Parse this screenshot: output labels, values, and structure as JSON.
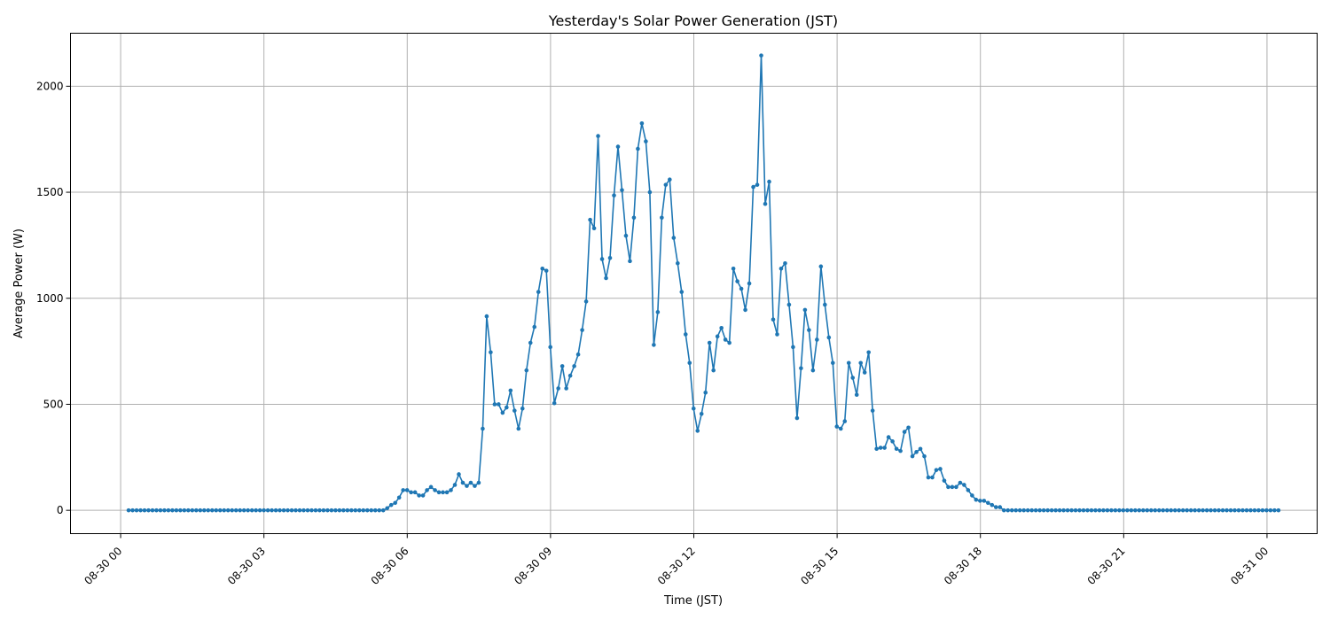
{
  "chart_data": {
    "type": "line",
    "title": "Yesterday's Solar Power Generation (JST)",
    "xlabel": "Time (JST)",
    "ylabel": "Average Power (W)",
    "x_tick_labels": [
      "08-30 00",
      "08-30 03",
      "08-30 06",
      "08-30 09",
      "08-30 12",
      "08-30 15",
      "08-30 18",
      "08-30 21",
      "08-31 00"
    ],
    "x_tick_hours": [
      0,
      3,
      6,
      9,
      12,
      15,
      18,
      21,
      24
    ],
    "y_ticks": [
      0,
      500,
      1000,
      1500,
      2000
    ],
    "xlim_hours": [
      -1.05,
      25.05
    ],
    "ylim": [
      -110,
      2250
    ],
    "grid": true,
    "line_color": "#1f77b4",
    "series": [
      {
        "x_start_hour": 0.1667,
        "x_step_hour": 0.0833,
        "values": [
          0,
          0,
          0,
          0,
          0,
          0,
          0,
          0,
          0,
          0,
          0,
          0,
          0,
          0,
          0,
          0,
          0,
          0,
          0,
          0,
          0,
          0,
          0,
          0,
          0,
          0,
          0,
          0,
          0,
          0,
          0,
          0,
          0,
          0,
          0,
          0,
          0,
          0,
          0,
          0,
          0,
          0,
          0,
          0,
          0,
          0,
          0,
          0,
          0,
          0,
          0,
          0,
          0,
          0,
          0,
          0,
          0,
          0,
          0,
          0,
          0,
          0,
          0,
          0,
          0,
          10,
          25,
          35,
          60,
          95,
          95,
          85,
          85,
          70,
          70,
          95,
          110,
          95,
          85,
          85,
          85,
          95,
          120,
          170,
          130,
          115,
          130,
          115,
          130,
          385,
          915,
          745,
          500,
          500,
          460,
          485,
          565,
          470,
          385,
          480,
          660,
          790,
          865,
          1030,
          1140,
          1130,
          770,
          505,
          575,
          680,
          575,
          635,
          680,
          735,
          850,
          985,
          1370,
          1330,
          1765,
          1185,
          1095,
          1190,
          1485,
          1715,
          1510,
          1295,
          1175,
          1380,
          1705,
          1825,
          1740,
          1500,
          780,
          935,
          1380,
          1535,
          1560,
          1285,
          1165,
          1030,
          830,
          695,
          480,
          375,
          455,
          555,
          790,
          660,
          820,
          860,
          805,
          790,
          1140,
          1080,
          1045,
          945,
          1070,
          1525,
          1535,
          2145,
          1445,
          1550,
          900,
          830,
          1140,
          1165,
          970,
          770,
          435,
          670,
          945,
          850,
          660,
          805,
          1150,
          970,
          815,
          695,
          395,
          385,
          420,
          695,
          625,
          545,
          695,
          650,
          745,
          470,
          290,
          295,
          295,
          345,
          325,
          290,
          280,
          370,
          390,
          255,
          275,
          290,
          255,
          155,
          155,
          190,
          195,
          140,
          110,
          110,
          110,
          130,
          120,
          95,
          70,
          50,
          45,
          45,
          35,
          25,
          15,
          15,
          0,
          0,
          0,
          0,
          0,
          0,
          0,
          0,
          0,
          0,
          0,
          0,
          0,
          0,
          0,
          0,
          0,
          0,
          0,
          0,
          0,
          0,
          0,
          0,
          0,
          0,
          0,
          0,
          0,
          0,
          0,
          0,
          0,
          0,
          0,
          0,
          0,
          0,
          0,
          0,
          0,
          0,
          0,
          0,
          0,
          0,
          0,
          0,
          0,
          0,
          0,
          0,
          0,
          0,
          0,
          0,
          0,
          0,
          0,
          0,
          0,
          0,
          0,
          0,
          0,
          0,
          0,
          0,
          0,
          0
        ]
      }
    ]
  }
}
